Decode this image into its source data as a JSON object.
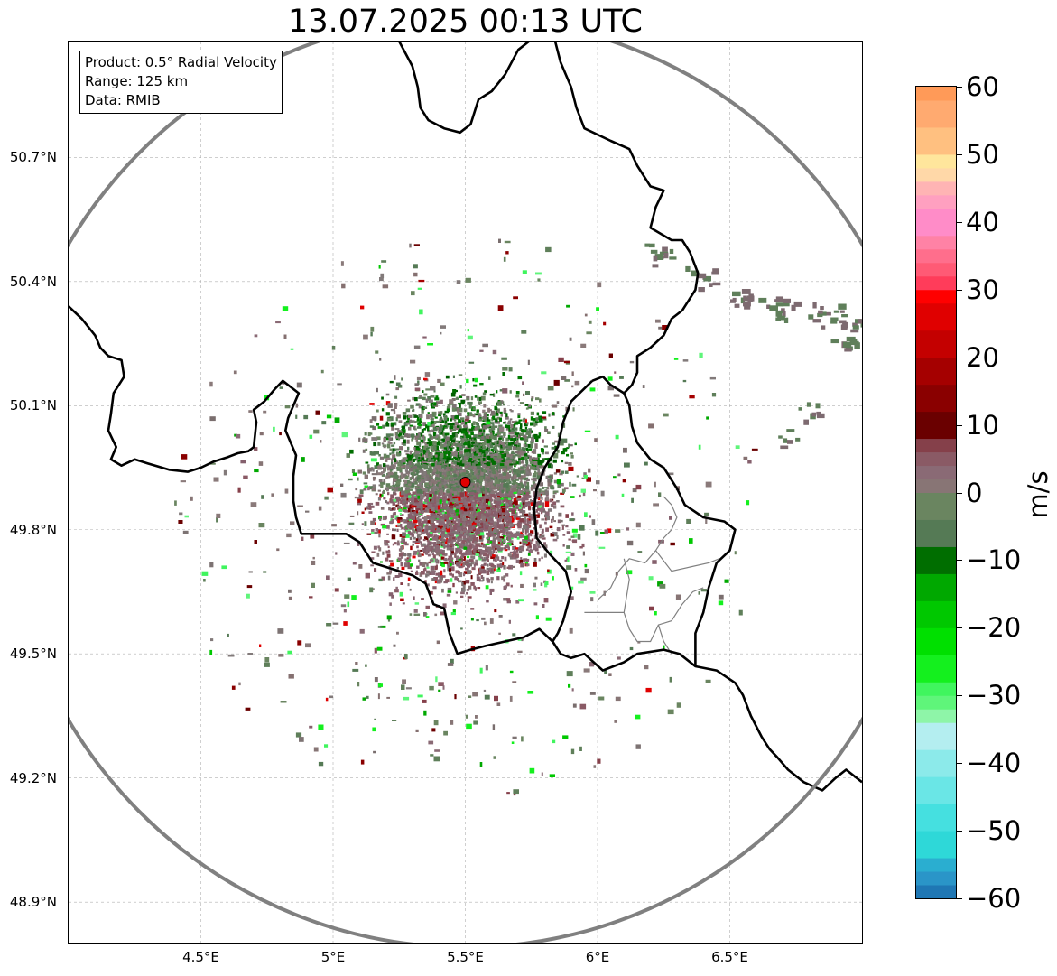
{
  "title": "13.07.2025 00:13 UTC",
  "info": {
    "product": "Product: 0.5° Radial Velocity",
    "range": "Range: 125 km",
    "data": "Data: RMIB"
  },
  "map_extent": {
    "lon_min": 4.0,
    "lon_max": 7.0,
    "lat_min": 48.8,
    "lat_max": 50.98
  },
  "radar_site": {
    "lon": 5.5,
    "lat": 49.915,
    "color": "#e00000"
  },
  "range_ring_color": "#808080",
  "grid": {
    "on": true,
    "style": "dashed",
    "color": "#b0b0b0"
  },
  "x_ticks": [
    {
      "value": 4.5,
      "label": "4.5°E"
    },
    {
      "value": 5.0,
      "label": "5°E"
    },
    {
      "value": 5.5,
      "label": "5.5°E"
    },
    {
      "value": 6.0,
      "label": "6°E"
    },
    {
      "value": 6.5,
      "label": "6.5°E"
    }
  ],
  "y_ticks": [
    {
      "value": 50.7,
      "label": "50.7°N"
    },
    {
      "value": 50.4,
      "label": "50.4°N"
    },
    {
      "value": 50.1,
      "label": "50.1°N"
    },
    {
      "value": 49.8,
      "label": "49.8°N"
    },
    {
      "value": 49.5,
      "label": "49.5°N"
    },
    {
      "value": 49.2,
      "label": "49.2°N"
    },
    {
      "value": 48.9,
      "label": "48.9°N"
    }
  ],
  "colorbar": {
    "label": "m/s",
    "min": -60,
    "max": 60,
    "ticks": [
      {
        "value": 60,
        "label": "60"
      },
      {
        "value": 50,
        "label": "50"
      },
      {
        "value": 40,
        "label": "40"
      },
      {
        "value": 30,
        "label": "30"
      },
      {
        "value": 20,
        "label": "20"
      },
      {
        "value": 10,
        "label": "10"
      },
      {
        "value": 0,
        "label": "0"
      },
      {
        "value": -10,
        "label": "−10"
      },
      {
        "value": -20,
        "label": "−20"
      },
      {
        "value": -30,
        "label": "−30"
      },
      {
        "value": -40,
        "label": "−40"
      },
      {
        "value": -50,
        "label": "−50"
      },
      {
        "value": -60,
        "label": "−60"
      }
    ],
    "stops": [
      {
        "from": -60,
        "to": -58,
        "color": "#1f77b4"
      },
      {
        "from": -58,
        "to": -56,
        "color": "#2a95c8"
      },
      {
        "from": -56,
        "to": -54,
        "color": "#2aaed0"
      },
      {
        "from": -54,
        "to": -50,
        "color": "#2ed8d8"
      },
      {
        "from": -50,
        "to": -46,
        "color": "#45e0e0"
      },
      {
        "from": -46,
        "to": -42,
        "color": "#6ae6e6"
      },
      {
        "from": -42,
        "to": -38,
        "color": "#8ceaea"
      },
      {
        "from": -38,
        "to": -34,
        "color": "#b4eef0"
      },
      {
        "from": -34,
        "to": -32,
        "color": "#8ef5a8"
      },
      {
        "from": -32,
        "to": -30,
        "color": "#5ff57a"
      },
      {
        "from": -30,
        "to": -28,
        "color": "#40f55e"
      },
      {
        "from": -28,
        "to": -24,
        "color": "#14f01e"
      },
      {
        "from": -24,
        "to": -20,
        "color": "#00e000"
      },
      {
        "from": -20,
        "to": -16,
        "color": "#00c800"
      },
      {
        "from": -16,
        "to": -12,
        "color": "#00a800"
      },
      {
        "from": -12,
        "to": -8,
        "color": "#006e00"
      },
      {
        "from": -8,
        "to": -4,
        "color": "#557a55"
      },
      {
        "from": -4,
        "to": 0,
        "color": "#6a8560"
      },
      {
        "from": 0,
        "to": 2,
        "color": "#887575"
      },
      {
        "from": 2,
        "to": 4,
        "color": "#8a6a75"
      },
      {
        "from": 4,
        "to": 6,
        "color": "#8a5a65"
      },
      {
        "from": 6,
        "to": 8,
        "color": "#85404a"
      },
      {
        "from": 8,
        "to": 12,
        "color": "#6a0000"
      },
      {
        "from": 12,
        "to": 16,
        "color": "#8a0000"
      },
      {
        "from": 16,
        "to": 20,
        "color": "#a50000"
      },
      {
        "from": 20,
        "to": 24,
        "color": "#c40000"
      },
      {
        "from": 24,
        "to": 28,
        "color": "#e00000"
      },
      {
        "from": 28,
        "to": 30,
        "color": "#ff0000"
      },
      {
        "from": 30,
        "to": 32,
        "color": "#ff3c5a"
      },
      {
        "from": 32,
        "to": 34,
        "color": "#ff5a75"
      },
      {
        "from": 34,
        "to": 36,
        "color": "#ff6e8c"
      },
      {
        "from": 36,
        "to": 38,
        "color": "#ff82a5"
      },
      {
        "from": 38,
        "to": 42,
        "color": "#ff8cc8"
      },
      {
        "from": 42,
        "to": 44,
        "color": "#ffa0c0"
      },
      {
        "from": 44,
        "to": 46,
        "color": "#ffb4b4"
      },
      {
        "from": 46,
        "to": 48,
        "color": "#ffd8a8"
      },
      {
        "from": 48,
        "to": 50,
        "color": "#ffe69c"
      },
      {
        "from": 50,
        "to": 54,
        "color": "#ffc080"
      },
      {
        "from": 54,
        "to": 58,
        "color": "#ffaa70"
      },
      {
        "from": 58,
        "to": 60,
        "color": "#ff9a58"
      }
    ]
  },
  "borders": {
    "national": [
      [
        [
          4.0,
          50.34
        ],
        [
          4.05,
          50.31
        ],
        [
          4.1,
          50.27
        ],
        [
          4.12,
          50.24
        ],
        [
          4.15,
          50.22
        ],
        [
          4.2,
          50.21
        ],
        [
          4.21,
          50.17
        ],
        [
          4.17,
          50.13
        ],
        [
          4.16,
          50.08
        ],
        [
          4.15,
          50.04
        ],
        [
          4.18,
          50.0
        ],
        [
          4.16,
          49.97
        ],
        [
          4.2,
          49.955
        ],
        [
          4.25,
          49.97
        ],
        [
          4.3,
          49.96
        ],
        [
          4.38,
          49.945
        ],
        [
          4.45,
          49.94
        ],
        [
          4.5,
          49.95
        ],
        [
          4.55,
          49.965
        ],
        [
          4.6,
          49.975
        ],
        [
          4.64,
          49.985
        ],
        [
          4.68,
          49.99
        ],
        [
          4.7,
          50.0
        ],
        [
          4.71,
          50.06
        ],
        [
          4.7,
          50.09
        ],
        [
          4.74,
          50.11
        ],
        [
          4.78,
          50.14
        ],
        [
          4.81,
          50.16
        ],
        [
          4.85,
          50.14
        ],
        [
          4.87,
          50.13
        ],
        [
          4.83,
          50.07
        ],
        [
          4.82,
          50.04
        ],
        [
          4.86,
          49.98
        ],
        [
          4.85,
          49.93
        ],
        [
          4.85,
          49.87
        ],
        [
          4.86,
          49.83
        ],
        [
          4.88,
          49.79
        ],
        [
          4.95,
          49.79
        ],
        [
          5.0,
          49.79
        ],
        [
          5.05,
          49.79
        ],
        [
          5.1,
          49.77
        ],
        [
          5.15,
          49.72
        ],
        [
          5.2,
          49.71
        ],
        [
          5.3,
          49.69
        ],
        [
          5.35,
          49.67
        ],
        [
          5.38,
          49.62
        ],
        [
          5.42,
          49.61
        ],
        [
          5.44,
          49.55
        ],
        [
          5.47,
          49.5
        ],
        [
          5.52,
          49.51
        ],
        [
          5.58,
          49.52
        ],
        [
          5.65,
          49.53
        ],
        [
          5.72,
          49.54
        ],
        [
          5.78,
          49.56
        ],
        [
          5.83,
          49.53
        ],
        [
          5.86,
          49.5
        ],
        [
          5.9,
          49.49
        ],
        [
          5.95,
          49.5
        ],
        [
          6.02,
          49.46
        ],
        [
          6.06,
          49.47
        ],
        [
          6.1,
          49.48
        ],
        [
          6.15,
          49.5
        ],
        [
          6.25,
          49.51
        ],
        [
          6.31,
          49.5
        ],
        [
          6.37,
          49.47
        ],
        [
          6.45,
          49.46
        ],
        [
          6.52,
          49.43
        ],
        [
          6.55,
          49.4
        ],
        [
          6.58,
          49.35
        ],
        [
          6.62,
          49.3
        ],
        [
          6.65,
          49.27
        ],
        [
          6.68,
          49.25
        ],
        [
          6.72,
          49.22
        ],
        [
          6.78,
          49.19
        ],
        [
          6.85,
          49.17
        ],
        [
          6.9,
          49.2
        ],
        [
          6.94,
          49.22
        ],
        [
          7.0,
          49.19
        ]
      ],
      [
        [
          5.25,
          50.98
        ],
        [
          5.3,
          50.92
        ],
        [
          5.32,
          50.87
        ],
        [
          5.33,
          50.82
        ],
        [
          5.36,
          50.79
        ],
        [
          5.42,
          50.77
        ],
        [
          5.48,
          50.76
        ],
        [
          5.52,
          50.78
        ],
        [
          5.55,
          50.84
        ],
        [
          5.6,
          50.86
        ],
        [
          5.65,
          50.9
        ],
        [
          5.7,
          50.96
        ],
        [
          5.74,
          50.98
        ]
      ],
      [
        [
          5.84,
          50.98
        ],
        [
          5.86,
          50.93
        ],
        [
          5.9,
          50.87
        ],
        [
          5.92,
          50.82
        ],
        [
          5.95,
          50.77
        ],
        [
          6.05,
          50.74
        ],
        [
          6.12,
          50.72
        ],
        [
          6.15,
          50.68
        ],
        [
          6.2,
          50.63
        ],
        [
          6.25,
          50.62
        ],
        [
          6.22,
          50.58
        ],
        [
          6.2,
          50.53
        ],
        [
          6.28,
          50.5
        ],
        [
          6.32,
          50.5
        ],
        [
          6.35,
          50.47
        ],
        [
          6.38,
          50.42
        ],
        [
          6.37,
          50.38
        ],
        [
          6.32,
          50.33
        ],
        [
          6.28,
          50.31
        ],
        [
          6.25,
          50.27
        ],
        [
          6.2,
          50.24
        ],
        [
          6.15,
          50.22
        ],
        [
          6.15,
          50.18
        ],
        [
          6.13,
          50.15
        ],
        [
          6.1,
          50.13
        ],
        [
          6.12,
          50.1
        ],
        [
          6.13,
          50.05
        ],
        [
          6.15,
          50.01
        ],
        [
          6.2,
          49.97
        ],
        [
          6.25,
          49.95
        ],
        [
          6.3,
          49.9
        ],
        [
          6.33,
          49.86
        ],
        [
          6.4,
          49.83
        ],
        [
          6.48,
          49.82
        ],
        [
          6.52,
          49.8
        ],
        [
          6.5,
          49.75
        ],
        [
          6.45,
          49.72
        ],
        [
          6.42,
          49.66
        ],
        [
          6.4,
          49.6
        ],
        [
          6.37,
          49.55
        ],
        [
          6.37,
          49.47
        ]
      ],
      [
        [
          5.98,
          50.16
        ],
        [
          6.02,
          50.17
        ],
        [
          6.05,
          50.15
        ],
        [
          6.1,
          50.13
        ]
      ],
      [
        [
          5.98,
          50.16
        ],
        [
          5.9,
          50.11
        ],
        [
          5.87,
          50.06
        ],
        [
          5.85,
          50.0
        ],
        [
          5.8,
          49.95
        ],
        [
          5.77,
          49.9
        ],
        [
          5.76,
          49.85
        ],
        [
          5.77,
          49.78
        ],
        [
          5.82,
          49.74
        ],
        [
          5.88,
          49.7
        ],
        [
          5.9,
          49.65
        ],
        [
          5.87,
          49.58
        ],
        [
          5.85,
          49.55
        ],
        [
          5.83,
          49.53
        ]
      ]
    ],
    "regional": [
      [
        [
          6.0,
          49.63
        ],
        [
          6.05,
          49.66
        ],
        [
          6.08,
          49.7
        ],
        [
          6.12,
          49.73
        ],
        [
          6.18,
          49.72
        ],
        [
          6.22,
          49.75
        ],
        [
          6.25,
          49.78
        ],
        [
          6.28,
          49.8
        ],
        [
          6.3,
          49.83
        ],
        [
          6.28,
          49.86
        ],
        [
          6.25,
          49.88
        ]
      ],
      [
        [
          6.1,
          49.73
        ],
        [
          6.12,
          49.68
        ],
        [
          6.1,
          49.6
        ],
        [
          6.12,
          49.56
        ],
        [
          6.15,
          49.53
        ],
        [
          6.2,
          49.53
        ],
        [
          6.23,
          49.57
        ],
        [
          6.28,
          49.58
        ],
        [
          6.32,
          49.62
        ],
        [
          6.36,
          49.65
        ],
        [
          6.4,
          49.66
        ]
      ],
      [
        [
          6.22,
          49.75
        ],
        [
          6.28,
          49.7
        ],
        [
          6.35,
          49.71
        ],
        [
          6.42,
          49.72
        ],
        [
          6.46,
          49.73
        ]
      ],
      [
        [
          6.1,
          49.6
        ],
        [
          6.05,
          49.6
        ],
        [
          5.98,
          49.6
        ],
        [
          5.95,
          49.6
        ]
      ],
      [
        [
          6.23,
          49.57
        ],
        [
          6.25,
          49.53
        ],
        [
          6.28,
          49.5
        ]
      ]
    ]
  }
}
